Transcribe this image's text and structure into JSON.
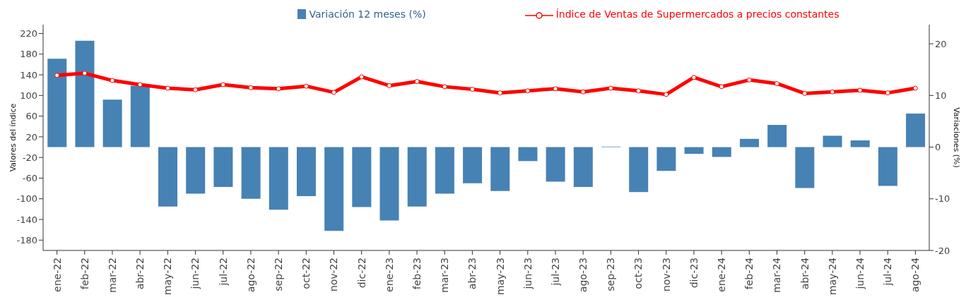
{
  "chart_data": {
    "type": "bar",
    "ylabel": "Valores del índice",
    "y2label": "Variaciones (%)",
    "categories": [
      "ene-22",
      "feb-22",
      "mar-22",
      "abr-22",
      "may-22",
      "jun-22",
      "jul-22",
      "ago-22",
      "sep-22",
      "oct-22",
      "nov-22",
      "dic-22",
      "ene-23",
      "feb-23",
      "mar-23",
      "abr-23",
      "may-23",
      "jun-23",
      "jul-23",
      "ago-23",
      "sep-23",
      "oct-23",
      "nov-23",
      "dic-23",
      "ene-24",
      "feb-24",
      "mar-24",
      "abr-24",
      "may-24",
      "jun-24",
      "jul-24",
      "ago-24"
    ],
    "series": [
      {
        "name": "Variación 12 meses (%)",
        "axis": "y2",
        "color": "#4682b4",
        "values": [
          17.1,
          20.6,
          9.2,
          11.9,
          -11.5,
          -9.0,
          -7.7,
          -10.0,
          -12.1,
          -9.5,
          -16.2,
          -11.6,
          -14.2,
          -11.5,
          -9.0,
          -7.0,
          -8.5,
          -2.7,
          -6.7,
          -7.7,
          0.1,
          -8.7,
          -4.6,
          -1.3,
          -1.9,
          1.6,
          4.3,
          -7.9,
          2.2,
          1.3,
          -7.5,
          6.5
        ]
      },
      {
        "name": "Índice de Ventas de Supermercados a precios constantes",
        "type": "line",
        "axis": "y",
        "color": "#ff0000",
        "marker": "circle",
        "values": [
          139,
          143,
          129,
          121,
          114,
          111,
          121,
          115,
          113,
          118,
          106,
          136,
          119,
          127,
          117,
          112,
          105,
          109,
          113,
          107,
          114,
          109,
          102,
          135,
          117,
          130,
          123,
          104,
          107,
          110,
          105,
          114
        ]
      }
    ],
    "ylim": [
      -200,
      237
    ],
    "yticks": [
      -180,
      -140,
      -100,
      -60,
      -20,
      20,
      60,
      100,
      140,
      180,
      220
    ],
    "y2lim": [
      -20,
      23.7
    ],
    "y2ticks": [
      -20,
      -10,
      0,
      10,
      20
    ],
    "legend": "top",
    "grid": false
  }
}
